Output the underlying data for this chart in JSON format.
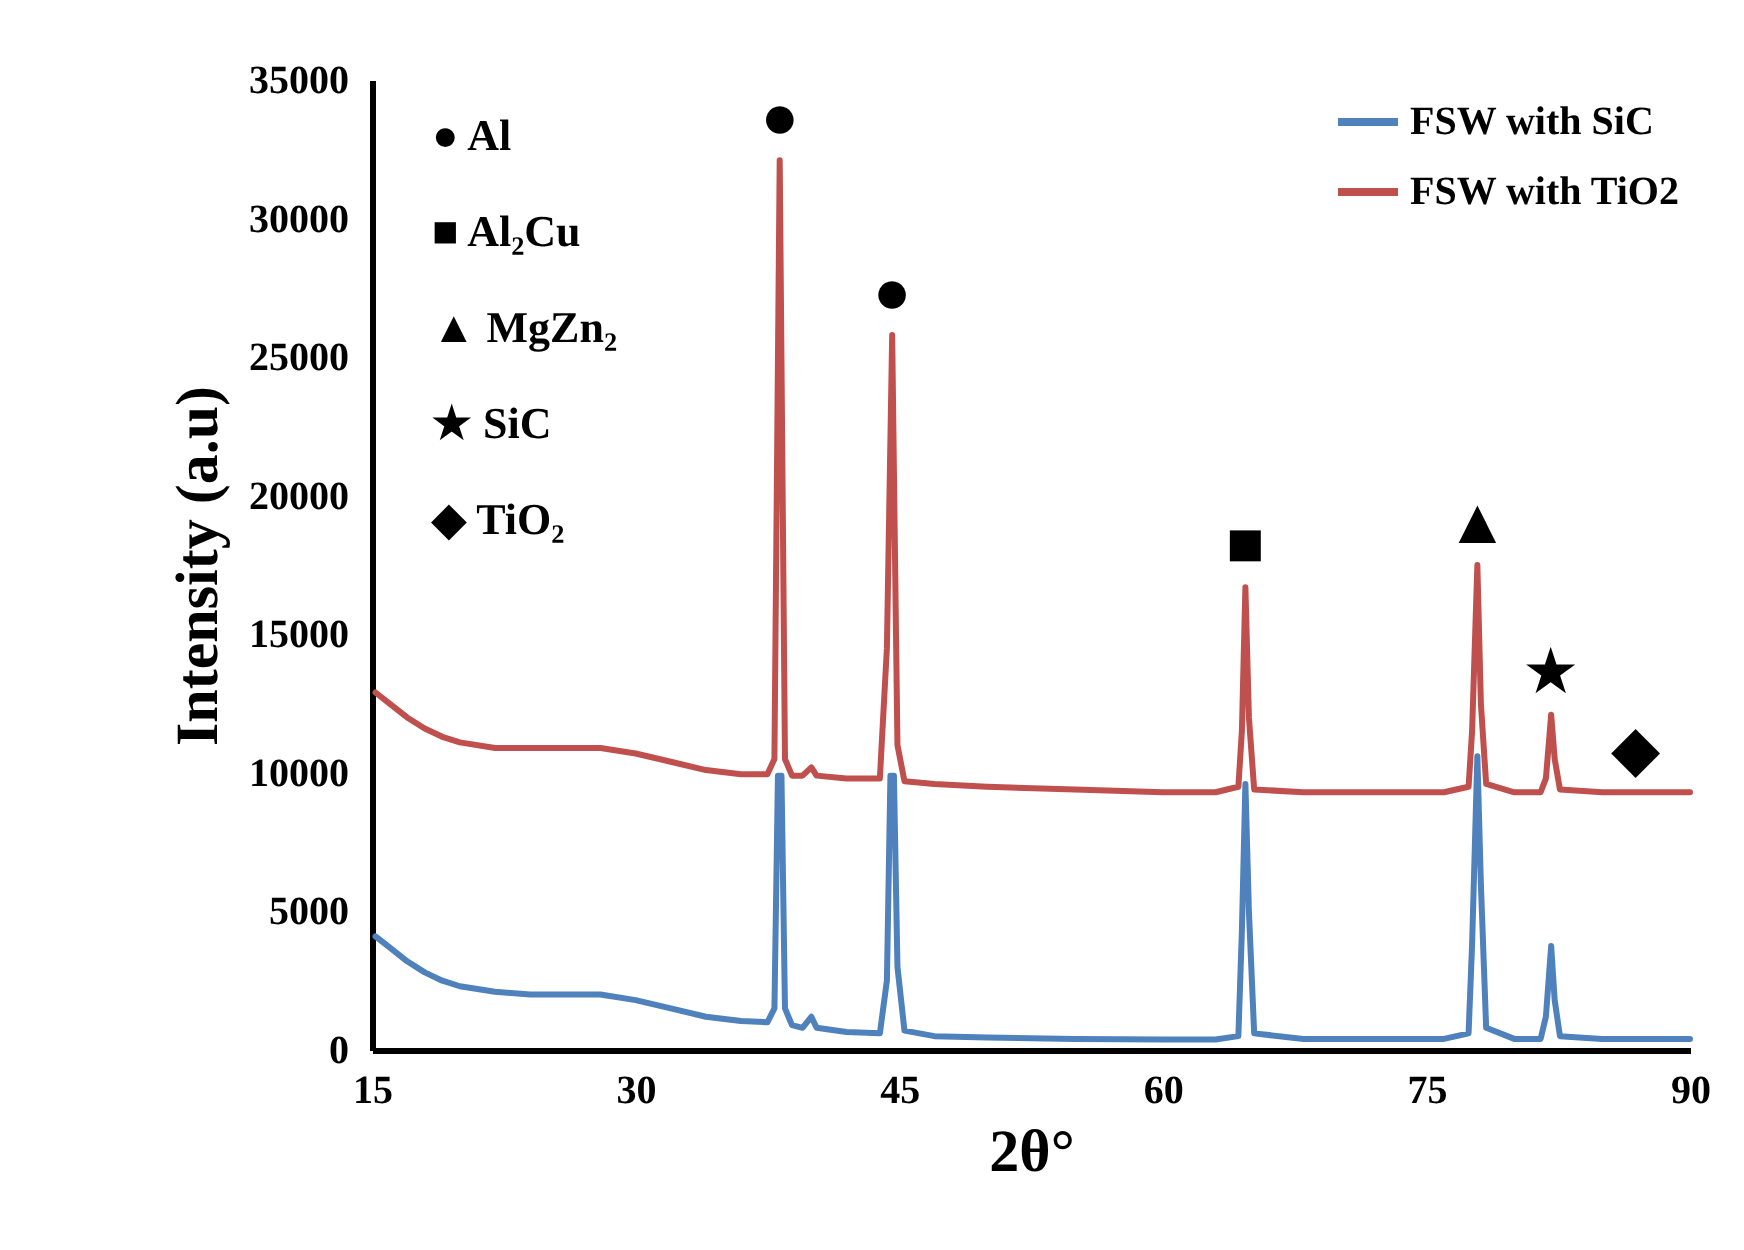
{
  "chart_data": {
    "type": "line",
    "xlabel": "2θ°",
    "ylabel": "Intensity (a.u)",
    "xlim": [
      15,
      90
    ],
    "xticks": [
      15,
      30,
      45,
      60,
      75,
      90
    ],
    "ylim": [
      0,
      35000
    ],
    "yticks": [
      0,
      5000,
      10000,
      15000,
      20000,
      25000,
      30000,
      35000
    ],
    "grid": false,
    "legend": "top right",
    "marker": "none",
    "line_style": "solid",
    "series": [
      {
        "name": "FSW with SiC",
        "color": "#4f81bd",
        "x": [
          15.2,
          16,
          17,
          18,
          19,
          20,
          22,
          24,
          26,
          28,
          30,
          32,
          34,
          36,
          37.5,
          37.9,
          38.1,
          38.3,
          38.5,
          38.9,
          39.5,
          40,
          40.3,
          42,
          43.9,
          44.3,
          44.5,
          44.7,
          44.9,
          45.3,
          47,
          50,
          55,
          60,
          63,
          64.3,
          64.5,
          64.7,
          64.9,
          65.2,
          68,
          72,
          76,
          77.4,
          77.6,
          77.9,
          78.1,
          78.4,
          80,
          81.5,
          81.8,
          82.1,
          82.3,
          82.6,
          85,
          90
        ],
        "values": [
          4100,
          3700,
          3200,
          2800,
          2500,
          2300,
          2100,
          2000,
          2000,
          2000,
          1800,
          1500,
          1200,
          1050,
          1000,
          1500,
          9900,
          9900,
          1500,
          900,
          800,
          1200,
          800,
          650,
          600,
          2500,
          9900,
          9900,
          3000,
          700,
          500,
          450,
          400,
          380,
          380,
          500,
          4300,
          9600,
          5000,
          600,
          400,
          400,
          400,
          600,
          3800,
          10600,
          6000,
          800,
          400,
          400,
          1200,
          3750,
          1800,
          500,
          400,
          400
        ]
      },
      {
        "name": "FSW with TiO2",
        "color": "#c0504d",
        "x": [
          15.2,
          16,
          17,
          18,
          19,
          20,
          22,
          24,
          26,
          28,
          30,
          32,
          34,
          36,
          37.5,
          37.9,
          38.2,
          38.5,
          38.9,
          39.5,
          40,
          40.3,
          42,
          43.9,
          44.3,
          44.6,
          44.9,
          45.3,
          47,
          50,
          55,
          60,
          63,
          64.3,
          64.5,
          64.7,
          64.9,
          65.2,
          68,
          72,
          76,
          77.4,
          77.6,
          77.9,
          78.1,
          78.4,
          80,
          81.5,
          81.8,
          82.1,
          82.3,
          82.6,
          85,
          90
        ],
        "values": [
          12900,
          12500,
          12000,
          11600,
          11300,
          11100,
          10900,
          10900,
          10900,
          10900,
          10700,
          10400,
          10100,
          9950,
          9950,
          10500,
          32100,
          10500,
          9900,
          9900,
          10200,
          9900,
          9800,
          9800,
          14500,
          25800,
          11000,
          9700,
          9600,
          9500,
          9400,
          9300,
          9300,
          9500,
          11500,
          16700,
          12000,
          9400,
          9300,
          9300,
          9300,
          9500,
          11500,
          17500,
          12500,
          9600,
          9300,
          9300,
          9800,
          12100,
          10500,
          9400,
          9300,
          9300
        ]
      }
    ],
    "annotations": [
      "● Al",
      "■ Al₂Cu",
      "▲ MgZn₂",
      "★ SiC",
      "◆ TiO₂",
      {
        "text": "●",
        "x": 38.2,
        "y": 32100
      },
      {
        "text": "●",
        "x": 44.6,
        "y": 25800
      },
      {
        "text": "■",
        "x": 64.7,
        "y": 16700
      },
      {
        "text": "▲",
        "x": 77.9,
        "y": 17500
      },
      {
        "text": "★",
        "x": 82.1,
        "y": 12100
      },
      {
        "text": "◆",
        "x": 86.9,
        "y": 9300
      }
    ]
  }
}
